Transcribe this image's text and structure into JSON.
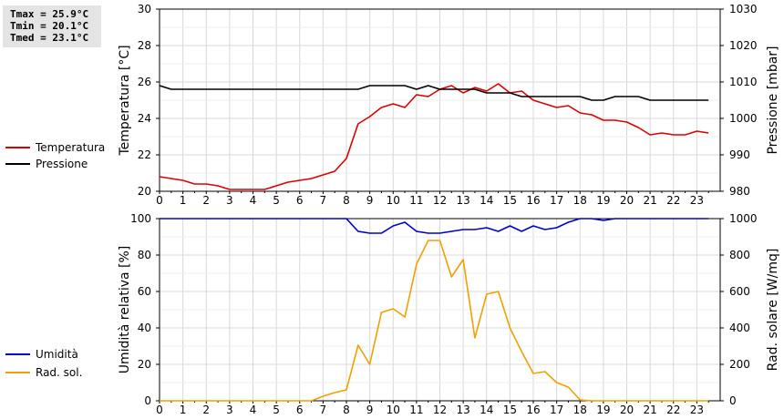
{
  "stats": {
    "tmax": "Tmax = 25.9°C",
    "tmin": "Tmin = 20.1°C",
    "tmed": "Tmed = 23.1°C"
  },
  "chart_data": [
    {
      "type": "line",
      "x_ticks": [
        "0",
        "1",
        "2",
        "3",
        "4",
        "5",
        "6",
        "7",
        "8",
        "9",
        "10",
        "11",
        "12",
        "13",
        "14",
        "15",
        "16",
        "17",
        "18",
        "19",
        "20",
        "21",
        "22",
        "23"
      ],
      "xlim": [
        0,
        24
      ],
      "ylabel_left": "Temperatura [°C]",
      "ylabel_right": "Pressione [mbar]",
      "ylim_left": [
        20,
        30
      ],
      "ylim_right": [
        980,
        1030
      ],
      "yticks_left": [
        "20",
        "22",
        "24",
        "26",
        "28",
        "30"
      ],
      "yticks_right": [
        "980",
        "990",
        "1000",
        "1010",
        "1020",
        "1030"
      ],
      "grid": true,
      "legend": "left",
      "series": [
        {
          "name": "Temperatura",
          "axis": "left",
          "color": "#dd0000",
          "points": [
            [
              0,
              20.8
            ],
            [
              0.5,
              20.7
            ],
            [
              1,
              20.6
            ],
            [
              1.5,
              20.4
            ],
            [
              2,
              20.4
            ],
            [
              2.5,
              20.3
            ],
            [
              3,
              20.1
            ],
            [
              3.5,
              20.1
            ],
            [
              4,
              20.1
            ],
            [
              4.5,
              20.1
            ],
            [
              5,
              20.3
            ],
            [
              5.5,
              20.5
            ],
            [
              6,
              20.6
            ],
            [
              6.5,
              20.7
            ],
            [
              7,
              20.9
            ],
            [
              7.5,
              21.1
            ],
            [
              8,
              21.8
            ],
            [
              8.5,
              23.7
            ],
            [
              9,
              24.1
            ],
            [
              9.5,
              24.6
            ],
            [
              10,
              24.8
            ],
            [
              10.5,
              24.6
            ],
            [
              11,
              25.3
            ],
            [
              11.5,
              25.2
            ],
            [
              12,
              25.6
            ],
            [
              12.5,
              25.8
            ],
            [
              13,
              25.4
            ],
            [
              13.5,
              25.7
            ],
            [
              14,
              25.5
            ],
            [
              14.5,
              25.9
            ],
            [
              15,
              25.4
            ],
            [
              15.5,
              25.5
            ],
            [
              16,
              25.0
            ],
            [
              16.5,
              24.8
            ],
            [
              17,
              24.6
            ],
            [
              17.5,
              24.7
            ],
            [
              18,
              24.3
            ],
            [
              18.5,
              24.2
            ],
            [
              19,
              23.9
            ],
            [
              19.5,
              23.9
            ],
            [
              20,
              23.8
            ],
            [
              20.5,
              23.5
            ],
            [
              21,
              23.1
            ],
            [
              21.5,
              23.2
            ],
            [
              22,
              23.1
            ],
            [
              22.5,
              23.1
            ],
            [
              23,
              23.3
            ],
            [
              23.5,
              23.2
            ]
          ]
        },
        {
          "name": "Pressione",
          "axis": "right",
          "color": "#000000",
          "points": [
            [
              0,
              1009
            ],
            [
              0.5,
              1008
            ],
            [
              1,
              1008
            ],
            [
              2,
              1008
            ],
            [
              3,
              1008
            ],
            [
              4,
              1008
            ],
            [
              5,
              1008
            ],
            [
              6,
              1008
            ],
            [
              7,
              1008
            ],
            [
              8,
              1008
            ],
            [
              8.5,
              1008
            ],
            [
              9,
              1009
            ],
            [
              10,
              1009
            ],
            [
              10.5,
              1009
            ],
            [
              11,
              1008
            ],
            [
              11.5,
              1009
            ],
            [
              12,
              1008
            ],
            [
              12.5,
              1008
            ],
            [
              13,
              1008
            ],
            [
              13.5,
              1008
            ],
            [
              14,
              1007
            ],
            [
              15,
              1007
            ],
            [
              15.5,
              1006
            ],
            [
              16,
              1006
            ],
            [
              17,
              1006
            ],
            [
              18,
              1006
            ],
            [
              18.5,
              1005
            ],
            [
              19,
              1005
            ],
            [
              19.5,
              1006
            ],
            [
              20,
              1006
            ],
            [
              20.5,
              1006
            ],
            [
              21,
              1005
            ],
            [
              22,
              1005
            ],
            [
              23,
              1005
            ],
            [
              23.5,
              1005
            ]
          ]
        }
      ]
    },
    {
      "type": "line",
      "x_ticks": [
        "0",
        "1",
        "2",
        "3",
        "4",
        "5",
        "6",
        "7",
        "8",
        "9",
        "10",
        "11",
        "12",
        "13",
        "14",
        "15",
        "16",
        "17",
        "18",
        "19",
        "20",
        "21",
        "22",
        "23"
      ],
      "xlim": [
        0,
        24
      ],
      "ylabel_left": "Umidità relativa [%]",
      "ylabel_right": "Rad. solare [W/mq]",
      "ylim_left": [
        0,
        100
      ],
      "ylim_right": [
        0,
        1000
      ],
      "yticks_left": [
        "0",
        "20",
        "40",
        "60",
        "80",
        "100"
      ],
      "yticks_right": [
        "0",
        "200",
        "400",
        "600",
        "800",
        "1000"
      ],
      "grid": true,
      "legend": "left",
      "series": [
        {
          "name": "Umidità",
          "axis": "left",
          "color": "#0000cc",
          "points": [
            [
              0,
              100
            ],
            [
              1,
              100
            ],
            [
              2,
              100
            ],
            [
              3,
              100
            ],
            [
              4,
              100
            ],
            [
              5,
              100
            ],
            [
              6,
              100
            ],
            [
              7,
              100
            ],
            [
              8,
              100
            ],
            [
              8.5,
              93
            ],
            [
              9,
              92
            ],
            [
              9.5,
              92
            ],
            [
              10,
              96
            ],
            [
              10.5,
              98
            ],
            [
              11,
              93
            ],
            [
              11.5,
              92
            ],
            [
              12,
              92
            ],
            [
              12.5,
              93
            ],
            [
              13,
              94
            ],
            [
              13.5,
              94
            ],
            [
              14,
              95
            ],
            [
              14.5,
              93
            ],
            [
              15,
              96
            ],
            [
              15.5,
              93
            ],
            [
              16,
              96
            ],
            [
              16.5,
              94
            ],
            [
              17,
              95
            ],
            [
              17.5,
              98
            ],
            [
              18,
              100
            ],
            [
              18.5,
              100
            ],
            [
              19,
              99
            ],
            [
              19.5,
              100
            ],
            [
              20,
              100
            ],
            [
              21,
              100
            ],
            [
              22,
              100
            ],
            [
              23,
              100
            ],
            [
              23.5,
              100
            ]
          ]
        },
        {
          "name": "Rad. sol.",
          "axis": "right",
          "color": "#f0a000",
          "points": [
            [
              0,
              0
            ],
            [
              1,
              0
            ],
            [
              2,
              0
            ],
            [
              3,
              0
            ],
            [
              4,
              0
            ],
            [
              5,
              0
            ],
            [
              6,
              0
            ],
            [
              6.5,
              0
            ],
            [
              7,
              25
            ],
            [
              7.5,
              45
            ],
            [
              8,
              60
            ],
            [
              8.5,
              305
            ],
            [
              9,
              200
            ],
            [
              9.5,
              485
            ],
            [
              10,
              505
            ],
            [
              10.5,
              460
            ],
            [
              11,
              750
            ],
            [
              11.5,
              880
            ],
            [
              12,
              880
            ],
            [
              12.5,
              680
            ],
            [
              13,
              775
            ],
            [
              13.5,
              345
            ],
            [
              14,
              585
            ],
            [
              14.5,
              600
            ],
            [
              15,
              400
            ],
            [
              15.5,
              270
            ],
            [
              16,
              150
            ],
            [
              16.5,
              160
            ],
            [
              17,
              100
            ],
            [
              17.5,
              75
            ],
            [
              18,
              5
            ],
            [
              18.5,
              0
            ],
            [
              19,
              0
            ],
            [
              20,
              0
            ],
            [
              21,
              0
            ],
            [
              22,
              0
            ],
            [
              23,
              0
            ],
            [
              23.5,
              0
            ]
          ]
        }
      ]
    }
  ]
}
